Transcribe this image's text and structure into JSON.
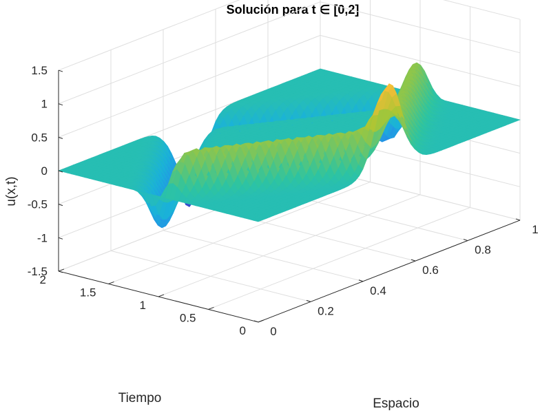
{
  "chart_data": {
    "type": "surface3d",
    "title": "Solución para t ∈ [0,2]",
    "xlabel": "Espacio",
    "ylabel": "Tiempo",
    "zlabel": "u(x,t)",
    "xlim": [
      0,
      1
    ],
    "ylim": [
      0,
      2
    ],
    "zlim": [
      -1.5,
      1.5
    ],
    "x_ticks": [
      "0",
      "0.2",
      "0.4",
      "0.6",
      "0.8",
      "1"
    ],
    "y_ticks": [
      "0",
      "0.5",
      "1",
      "1.5",
      "2"
    ],
    "z_ticks": [
      "-1.5",
      "-1",
      "-0.5",
      "0",
      "0.5",
      "1",
      "1.5"
    ],
    "grid": true,
    "colormap": "parula",
    "colors": {
      "low": "#3e26a8",
      "mid": "#1ac2b4",
      "high": "#f9fb15"
    },
    "surface": {
      "description_values": "two counter-propagating Gaussian pulses of amplitude ~1.3 with inverted reflections",
      "pulse_amplitude": 1.3,
      "pulse_width": 0.05
    }
  }
}
